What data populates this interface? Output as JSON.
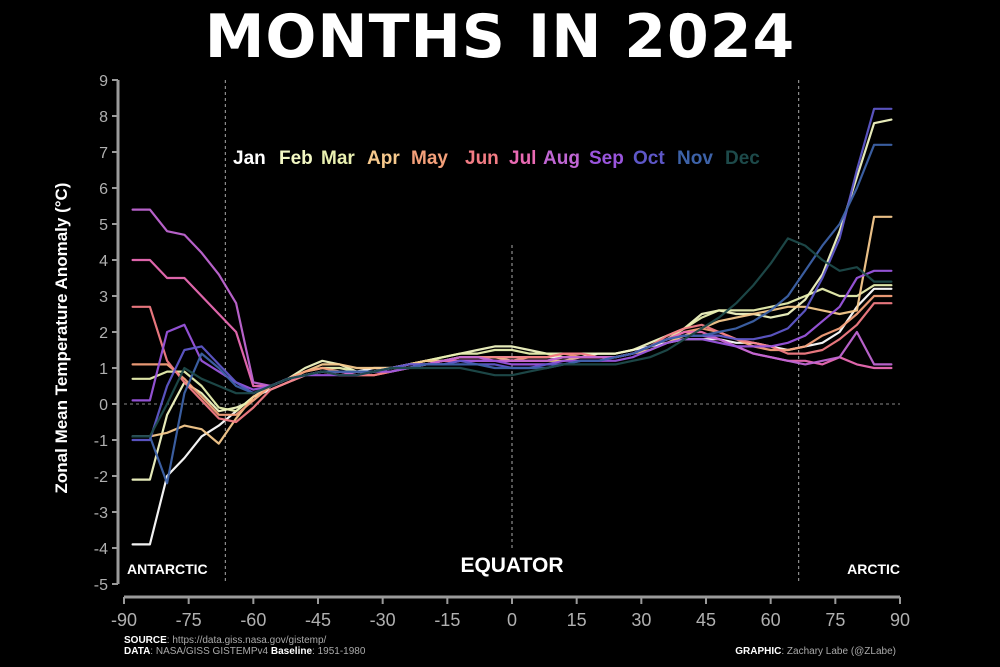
{
  "title": "MONTHS IN 2024",
  "footer": {
    "source_label": "SOURCE",
    "source_value": ": https://data.giss.nasa.gov/gistemp/",
    "data_label": "DATA",
    "data_value": ": NASA/GISS GISTEMPv4 ",
    "baseline_label": "Baseline",
    "baseline_value": ": 1951-1980",
    "graphic_label": "GRAPHIC",
    "graphic_value": ": Zachary Labe (@ZLabe)"
  },
  "chart_data": {
    "type": "line",
    "title": "MONTHS IN 2024",
    "xlabel": "",
    "ylabel": "Zonal Mean Temperature Anomaly (°C)",
    "xlim": [
      -90,
      90
    ],
    "ylim": [
      -5,
      9
    ],
    "xticks": [
      -90,
      -75,
      -60,
      -45,
      -30,
      -15,
      0,
      15,
      30,
      45,
      60,
      75,
      90
    ],
    "yticks": [
      -5,
      -4,
      -3,
      -2,
      -1,
      0,
      1,
      2,
      3,
      4,
      5,
      6,
      7,
      8,
      9
    ],
    "region_labels": [
      "ANTARCTIC",
      "EQUATOR",
      "ARCTIC"
    ],
    "reference_lines_x": [
      -66.5,
      0,
      66.5
    ],
    "legend_placement": "top-center",
    "x": [
      -88,
      -84,
      -80,
      -76,
      -72,
      -68,
      -64,
      -60,
      -56,
      -52,
      -48,
      -44,
      -40,
      -36,
      -32,
      -28,
      -24,
      -20,
      -16,
      -12,
      -8,
      -4,
      0,
      4,
      8,
      12,
      16,
      20,
      24,
      28,
      32,
      36,
      40,
      44,
      48,
      52,
      56,
      60,
      64,
      68,
      72,
      76,
      80,
      84,
      88
    ],
    "series": [
      {
        "name": "Jan",
        "color": "#ffffff",
        "values": [
          -3.9,
          -3.9,
          -2.0,
          -1.5,
          -0.9,
          -0.6,
          -0.2,
          0.2,
          0.4,
          0.6,
          0.8,
          0.9,
          0.9,
          0.9,
          1.0,
          1.0,
          1.1,
          1.2,
          1.2,
          1.3,
          1.3,
          1.3,
          1.3,
          1.3,
          1.3,
          1.3,
          1.3,
          1.4,
          1.4,
          1.5,
          1.6,
          1.7,
          1.8,
          1.8,
          1.8,
          1.7,
          1.7,
          1.6,
          1.5,
          1.6,
          1.7,
          2.0,
          2.7,
          3.2,
          3.2
        ]
      },
      {
        "name": "Feb",
        "color": "#f2f7c3",
        "values": [
          -2.1,
          -2.1,
          -0.3,
          0.6,
          0.3,
          -0.2,
          -0.1,
          0.1,
          0.5,
          0.7,
          1.0,
          1.2,
          1.1,
          0.9,
          0.9,
          1.0,
          1.1,
          1.2,
          1.3,
          1.4,
          1.5,
          1.6,
          1.6,
          1.5,
          1.4,
          1.4,
          1.4,
          1.4,
          1.4,
          1.5,
          1.7,
          1.9,
          2.1,
          2.5,
          2.6,
          2.5,
          2.5,
          2.4,
          2.5,
          2.9,
          3.6,
          4.8,
          6.3,
          7.8,
          7.9
        ]
      },
      {
        "name": "Mar",
        "color": "#e9f0b0",
        "values": [
          0.7,
          0.7,
          0.9,
          0.9,
          0.5,
          -0.1,
          -0.2,
          0.2,
          0.5,
          0.7,
          0.9,
          1.0,
          1.0,
          0.9,
          0.9,
          1.0,
          1.1,
          1.2,
          1.3,
          1.4,
          1.4,
          1.5,
          1.5,
          1.4,
          1.4,
          1.3,
          1.3,
          1.3,
          1.3,
          1.4,
          1.6,
          1.8,
          2.1,
          2.4,
          2.6,
          2.6,
          2.6,
          2.7,
          2.8,
          3.0,
          3.2,
          3.0,
          3.0,
          3.3,
          3.3
        ]
      },
      {
        "name": "Apr",
        "color": "#f6c98d",
        "values": [
          -0.9,
          -0.9,
          -0.8,
          -0.6,
          -0.7,
          -1.1,
          -0.4,
          0.2,
          0.5,
          0.7,
          0.9,
          1.1,
          1.1,
          1.0,
          1.0,
          1.0,
          1.1,
          1.2,
          1.2,
          1.3,
          1.3,
          1.3,
          1.2,
          1.2,
          1.2,
          1.2,
          1.3,
          1.3,
          1.3,
          1.4,
          1.5,
          1.7,
          1.9,
          2.1,
          2.3,
          2.4,
          2.5,
          2.6,
          2.7,
          2.7,
          2.6,
          2.5,
          2.6,
          5.2,
          5.2
        ]
      },
      {
        "name": "May",
        "color": "#f4a07a",
        "values": [
          1.1,
          1.1,
          1.1,
          0.7,
          0.2,
          -0.3,
          -0.3,
          0.1,
          0.5,
          0.7,
          0.9,
          1.0,
          0.9,
          0.8,
          0.8,
          0.9,
          1.0,
          1.1,
          1.2,
          1.2,
          1.2,
          1.2,
          1.2,
          1.3,
          1.3,
          1.4,
          1.3,
          1.3,
          1.3,
          1.4,
          1.6,
          1.8,
          2.0,
          2.1,
          2.0,
          1.8,
          1.6,
          1.5,
          1.5,
          1.6,
          1.9,
          2.1,
          2.5,
          3.0,
          3.0
        ]
      },
      {
        "name": "Jun",
        "color": "#f27c84",
        "values": [
          2.7,
          2.7,
          1.2,
          0.6,
          0.1,
          -0.4,
          -0.5,
          -0.1,
          0.4,
          0.6,
          0.8,
          0.9,
          0.8,
          0.8,
          0.8,
          0.9,
          1.0,
          1.1,
          1.2,
          1.3,
          1.3,
          1.3,
          1.3,
          1.3,
          1.3,
          1.4,
          1.4,
          1.3,
          1.3,
          1.4,
          1.6,
          1.9,
          2.1,
          2.2,
          2.0,
          1.8,
          1.7,
          1.6,
          1.4,
          1.4,
          1.5,
          1.8,
          2.2,
          2.8,
          2.8
        ]
      },
      {
        "name": "Jul",
        "color": "#e96ab3",
        "values": [
          4.0,
          4.0,
          3.5,
          3.5,
          3.0,
          2.5,
          2.0,
          0.5,
          0.5,
          0.7,
          0.8,
          0.9,
          0.8,
          0.8,
          0.9,
          1.0,
          1.0,
          1.1,
          1.2,
          1.2,
          1.2,
          1.2,
          1.2,
          1.2,
          1.2,
          1.3,
          1.3,
          1.3,
          1.3,
          1.4,
          1.6,
          1.8,
          2.0,
          2.0,
          1.8,
          1.6,
          1.4,
          1.3,
          1.2,
          1.2,
          1.1,
          1.3,
          1.1,
          1.0,
          1.0
        ]
      },
      {
        "name": "Aug",
        "color": "#c066d3",
        "values": [
          5.4,
          5.4,
          4.8,
          4.7,
          4.2,
          3.6,
          2.8,
          0.6,
          0.5,
          0.7,
          0.8,
          0.9,
          0.9,
          0.8,
          0.9,
          1.0,
          1.1,
          1.1,
          1.2,
          1.3,
          1.3,
          1.2,
          1.2,
          1.2,
          1.2,
          1.3,
          1.3,
          1.3,
          1.3,
          1.4,
          1.6,
          1.8,
          1.9,
          1.9,
          1.8,
          1.6,
          1.4,
          1.3,
          1.2,
          1.1,
          1.2,
          1.3,
          2.0,
          1.1,
          1.1
        ]
      },
      {
        "name": "Sep",
        "color": "#9a55dd",
        "values": [
          0.1,
          0.1,
          2.0,
          2.2,
          1.2,
          0.9,
          0.6,
          0.4,
          0.5,
          0.7,
          0.8,
          0.8,
          0.8,
          0.8,
          0.9,
          0.9,
          1.0,
          1.1,
          1.1,
          1.2,
          1.2,
          1.2,
          1.1,
          1.1,
          1.1,
          1.2,
          1.2,
          1.2,
          1.2,
          1.3,
          1.5,
          1.7,
          1.8,
          1.8,
          1.7,
          1.6,
          1.6,
          1.6,
          1.7,
          1.9,
          2.3,
          2.7,
          3.5,
          3.7,
          3.7
        ]
      },
      {
        "name": "Oct",
        "color": "#5e57c8",
        "values": [
          -1.0,
          -1.0,
          0.5,
          1.5,
          1.6,
          1.1,
          0.6,
          0.3,
          0.5,
          0.7,
          0.8,
          0.9,
          0.9,
          0.9,
          0.9,
          1.0,
          1.1,
          1.1,
          1.1,
          1.2,
          1.1,
          1.1,
          1.0,
          1.0,
          1.1,
          1.1,
          1.2,
          1.2,
          1.3,
          1.4,
          1.6,
          1.8,
          1.9,
          1.9,
          1.9,
          1.8,
          1.8,
          1.9,
          2.1,
          2.6,
          3.5,
          4.6,
          6.5,
          8.2,
          8.2
        ]
      },
      {
        "name": "Nov",
        "color": "#3d62a8",
        "values": [
          -0.9,
          -0.9,
          -2.2,
          0.3,
          1.4,
          1.0,
          0.5,
          0.3,
          0.5,
          0.7,
          0.8,
          0.9,
          0.9,
          0.9,
          0.9,
          1.0,
          1.0,
          1.1,
          1.1,
          1.1,
          1.1,
          1.0,
          1.0,
          1.0,
          1.0,
          1.1,
          1.2,
          1.2,
          1.3,
          1.4,
          1.6,
          1.8,
          1.9,
          1.9,
          2.0,
          2.1,
          2.3,
          2.6,
          3.0,
          3.7,
          4.4,
          5.0,
          6.0,
          7.2,
          7.2
        ]
      },
      {
        "name": "Dec",
        "color": "#1d4a4a",
        "values": [
          -0.9,
          -0.9,
          0.0,
          1.0,
          0.7,
          0.5,
          0.3,
          0.3,
          0.5,
          0.7,
          0.8,
          0.9,
          0.8,
          0.8,
          0.9,
          1.0,
          1.0,
          1.0,
          1.0,
          1.0,
          0.9,
          0.8,
          0.8,
          0.9,
          1.0,
          1.1,
          1.1,
          1.1,
          1.1,
          1.2,
          1.3,
          1.5,
          1.8,
          2.1,
          2.4,
          2.8,
          3.3,
          3.9,
          4.6,
          4.4,
          4.0,
          3.7,
          3.8,
          3.4,
          3.4
        ]
      }
    ]
  }
}
